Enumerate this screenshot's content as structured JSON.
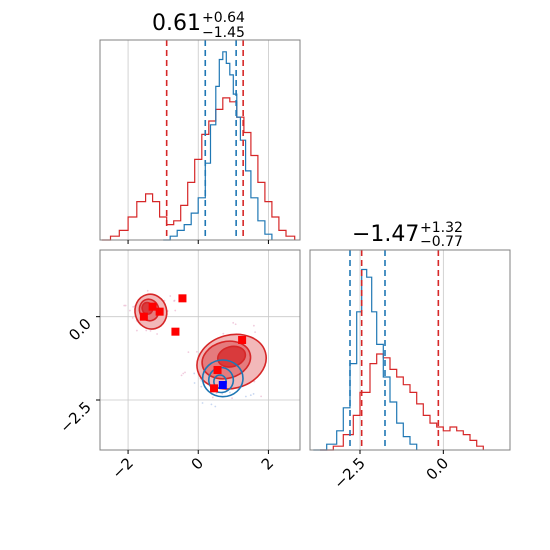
{
  "colors": {
    "red": "#d62728",
    "blue": "#1f77b4",
    "red_fill_light": "#f2b8b9",
    "red_fill_mid": "#e57b7d",
    "red_fill_dark": "#d93a3c",
    "marker_red": "#ff0000",
    "marker_blue": "#0000ff",
    "grid": "#c8c8c8",
    "frame": "#808080"
  },
  "chart_data": [
    {
      "type": "area",
      "panel": "top-left",
      "title": {
        "value": "0.61",
        "upper": "+0.64",
        "lower": "−1.45"
      },
      "xlim": [
        -2.8,
        2.9
      ],
      "grid": true,
      "series": [
        {
          "color": "#d62728",
          "x": [
            -2.75,
            -2.5,
            -2.25,
            -2.0,
            -1.75,
            -1.5,
            -1.3,
            -1.1,
            -0.9,
            -0.7,
            -0.5,
            -0.3,
            -0.1,
            0.1,
            0.3,
            0.5,
            0.7,
            0.9,
            1.1,
            1.3,
            1.5,
            1.7,
            1.9,
            2.1,
            2.3,
            2.5,
            2.75
          ],
          "values": [
            0.0,
            0.02,
            0.05,
            0.12,
            0.2,
            0.24,
            0.2,
            0.12,
            0.08,
            0.1,
            0.18,
            0.3,
            0.42,
            0.55,
            0.62,
            0.68,
            0.74,
            0.72,
            0.64,
            0.56,
            0.44,
            0.3,
            0.2,
            0.12,
            0.05,
            0.02,
            0.0
          ]
        },
        {
          "color": "#1f77b4",
          "x": [
            -1.0,
            -0.8,
            -0.6,
            -0.4,
            -0.2,
            0.0,
            0.2,
            0.35,
            0.5,
            0.6,
            0.7,
            0.8,
            0.9,
            1.0,
            1.1,
            1.2,
            1.35,
            1.5,
            1.7,
            1.9,
            2.1
          ],
          "values": [
            0.0,
            0.02,
            0.05,
            0.08,
            0.14,
            0.22,
            0.4,
            0.6,
            0.8,
            0.94,
            0.98,
            0.92,
            0.86,
            0.76,
            0.64,
            0.52,
            0.36,
            0.22,
            0.1,
            0.03,
            0.0
          ]
        }
      ],
      "quantile_lines": [
        {
          "x": -0.9,
          "color": "#d62728"
        },
        {
          "x": 1.28,
          "color": "#d62728"
        },
        {
          "x": 0.2,
          "color": "#1f77b4"
        },
        {
          "x": 1.08,
          "color": "#1f77b4"
        }
      ],
      "xticks": [
        -2,
        0,
        2
      ]
    },
    {
      "type": "scatter",
      "panel": "bottom-left",
      "xlim": [
        -2.8,
        2.9
      ],
      "ylim": [
        -4.0,
        2.0
      ],
      "grid": true,
      "xticks": [
        -2,
        0,
        2
      ],
      "xtick_labels": [
        "−2",
        "0",
        "2"
      ],
      "yticks": [
        0.0,
        -2.5
      ],
      "ytick_labels": [
        "0.0",
        "−2.5"
      ],
      "red_contours": [
        {
          "level": "outer",
          "centers": [
            {
              "x": -1.35,
              "y": 0.15,
              "rx": 0.9,
              "ry": 1.05
            },
            {
              "x": 0.95,
              "y": -1.35,
              "rx": 2.0,
              "ry": 1.6
            }
          ]
        },
        {
          "level": "middle",
          "centers": [
            {
              "x": -1.4,
              "y": 0.2,
              "rx": 0.55,
              "ry": 0.65
            },
            {
              "x": 0.8,
              "y": -1.3,
              "rx": 1.4,
              "ry": 1.1
            }
          ]
        },
        {
          "level": "inner",
          "centers": [
            {
              "x": -1.45,
              "y": 0.25,
              "rx": 0.3,
              "ry": 0.35
            },
            {
              "x": 0.95,
              "y": -1.2,
              "rx": 0.8,
              "ry": 0.6
            }
          ]
        }
      ],
      "blue_contours": [
        {
          "x": 0.7,
          "y": -1.85,
          "rx": 1.15,
          "ry": 1.1
        },
        {
          "x": 0.65,
          "y": -1.9,
          "rx": 0.7,
          "ry": 0.75
        },
        {
          "x": 0.62,
          "y": -1.95,
          "rx": 0.35,
          "ry": 0.4
        }
      ],
      "red_markers": [
        {
          "x": -1.55,
          "y": 0.0
        },
        {
          "x": -1.3,
          "y": 0.3
        },
        {
          "x": -1.1,
          "y": 0.15
        },
        {
          "x": -0.45,
          "y": 0.55
        },
        {
          "x": -0.65,
          "y": -0.45
        },
        {
          "x": 1.25,
          "y": -0.7
        },
        {
          "x": 0.55,
          "y": -1.6
        },
        {
          "x": 0.45,
          "y": -2.15
        }
      ],
      "blue_markers": [
        {
          "x": 0.7,
          "y": -2.05
        }
      ]
    },
    {
      "type": "area",
      "panel": "bottom-right",
      "title": {
        "value": "−1.47",
        "upper": "+1.32",
        "lower": "−0.77"
      },
      "xlim": [
        -4.0,
        2.0
      ],
      "grid": true,
      "xticks": [
        -2.5,
        0.0
      ],
      "xtick_labels": [
        "−2.5",
        "0.0"
      ],
      "series": [
        {
          "color": "#d62728",
          "x": [
            -3.7,
            -3.3,
            -3.0,
            -2.7,
            -2.5,
            -2.2,
            -2.0,
            -1.8,
            -1.6,
            -1.4,
            -1.2,
            -1.0,
            -0.8,
            -0.6,
            -0.4,
            -0.2,
            0.0,
            0.2,
            0.4,
            0.6,
            0.8,
            1.0,
            1.2
          ],
          "values": [
            0.0,
            0.02,
            0.08,
            0.18,
            0.3,
            0.45,
            0.5,
            0.48,
            0.42,
            0.38,
            0.34,
            0.3,
            0.24,
            0.18,
            0.14,
            0.12,
            0.1,
            0.12,
            0.1,
            0.08,
            0.05,
            0.02,
            0.0
          ]
        },
        {
          "color": "#1f77b4",
          "x": [
            -3.9,
            -3.5,
            -3.2,
            -3.0,
            -2.8,
            -2.6,
            -2.45,
            -2.3,
            -2.15,
            -2.0,
            -1.8,
            -1.6,
            -1.4,
            -1.2,
            -1.0,
            -0.8
          ],
          "values": [
            0.0,
            0.03,
            0.1,
            0.22,
            0.45,
            0.72,
            0.94,
            0.9,
            0.72,
            0.55,
            0.38,
            0.25,
            0.14,
            0.07,
            0.03,
            0.0
          ]
        }
      ],
      "quantile_lines": [
        {
          "x": -2.8,
          "color": "#1f77b4"
        },
        {
          "x": -2.45,
          "color": "#d62728"
        },
        {
          "x": -1.75,
          "color": "#1f77b4"
        },
        {
          "x": -0.15,
          "color": "#d62728"
        }
      ]
    }
  ]
}
